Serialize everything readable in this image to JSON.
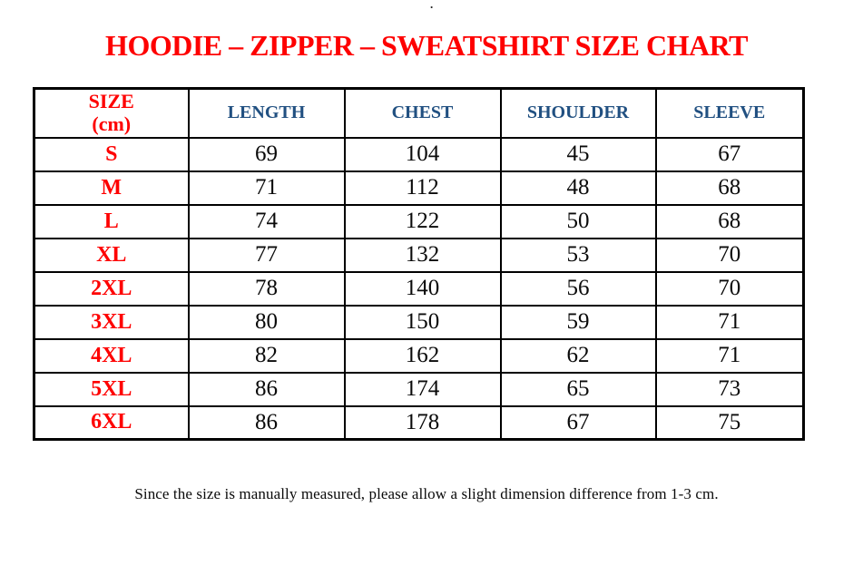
{
  "page": {
    "stray_mark": ".",
    "title": "HOODIE – ZIPPER – SWEATSHIRT SIZE CHART",
    "footer_note": "Since the size is manually measured, please allow a slight dimension difference from 1-3 cm."
  },
  "colors": {
    "title_red": "#fe0000",
    "header_blue": "#215081",
    "value_black": "#0a0a0a",
    "border_black": "#000000"
  },
  "chart_data": {
    "type": "table",
    "title": "HOODIE – ZIPPER – SWEATSHIRT SIZE CHART",
    "unit": "cm",
    "header": {
      "size_line1": "SIZE",
      "size_line2": "(cm)",
      "measurements": [
        "LENGTH",
        "CHEST",
        "SHOULDER",
        "SLEEVE"
      ]
    },
    "rows": [
      {
        "size": "S",
        "values": [
          69,
          104,
          45,
          67
        ]
      },
      {
        "size": "M",
        "values": [
          71,
          112,
          48,
          68
        ]
      },
      {
        "size": "L",
        "values": [
          74,
          122,
          50,
          68
        ]
      },
      {
        "size": "XL",
        "values": [
          77,
          132,
          53,
          70
        ]
      },
      {
        "size": "2XL",
        "values": [
          78,
          140,
          56,
          70
        ]
      },
      {
        "size": "3XL",
        "values": [
          80,
          150,
          59,
          71
        ]
      },
      {
        "size": "4XL",
        "values": [
          82,
          162,
          62,
          71
        ]
      },
      {
        "size": "5XL",
        "values": [
          86,
          174,
          65,
          73
        ]
      },
      {
        "size": "6XL",
        "values": [
          86,
          178,
          67,
          75
        ]
      }
    ],
    "footnote": "Since the size is manually measured, please allow a slight dimension difference from 1-3 cm."
  }
}
